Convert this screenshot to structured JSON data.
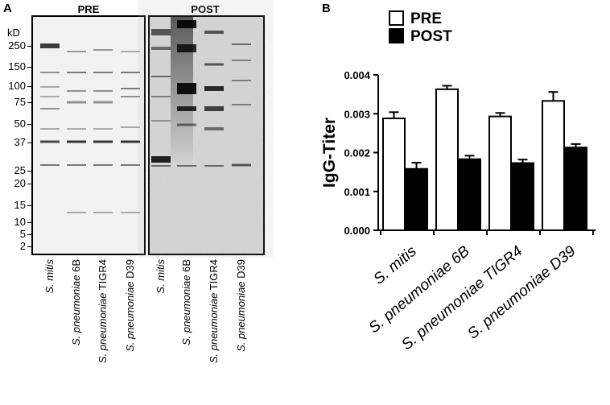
{
  "panel_a": {
    "letter": "A",
    "kd_label": "kD",
    "gels": [
      {
        "title": "PRE"
      },
      {
        "title": "POST"
      }
    ],
    "markers": [
      "250",
      "150",
      "100",
      "75",
      "50",
      "37",
      "25",
      "20",
      "15",
      "10",
      "5",
      "2"
    ],
    "lanes": [
      {
        "italic": "S. mitis",
        "suffix": ""
      },
      {
        "italic": "S. pneumoniae",
        "suffix": " 6B"
      },
      {
        "italic": "S. pneumoniae",
        "suffix": " TIGR4"
      },
      {
        "italic": "S. pneumoniae",
        "suffix": " D39"
      }
    ]
  },
  "panel_b": {
    "letter": "B"
  },
  "chart_data": {
    "type": "bar",
    "title": "",
    "xlabel": "",
    "ylabel": "IgG-Titer",
    "ylim": [
      0,
      0.004
    ],
    "yticks": [
      "0.000",
      "0.001",
      "0.002",
      "0.003",
      "0.004"
    ],
    "categories": [
      "S. mitis",
      "S. pneumoniae 6B",
      "S. pneumoniae TIGR4",
      "S. pneumoniae D39"
    ],
    "category_parts": [
      {
        "italic": "S. mitis",
        "suffix": ""
      },
      {
        "italic": "S. pneumoniae 6B",
        "suffix": ""
      },
      {
        "italic": "S. pneumoniae TIGR4",
        "suffix": ""
      },
      {
        "italic": "S. pneumoniae D39",
        "suffix": ""
      }
    ],
    "series": [
      {
        "name": "PRE",
        "fill": "#ffffff",
        "values": [
          0.00288,
          0.00363,
          0.00293,
          0.00333
        ],
        "errors": [
          0.00016,
          9e-05,
          9e-05,
          0.00023
        ]
      },
      {
        "name": "POST",
        "fill": "#000000",
        "values": [
          0.00158,
          0.00183,
          0.00173,
          0.00213
        ],
        "errors": [
          0.00016,
          9e-05,
          9e-05,
          9e-05
        ]
      }
    ],
    "legend_position": "top"
  }
}
